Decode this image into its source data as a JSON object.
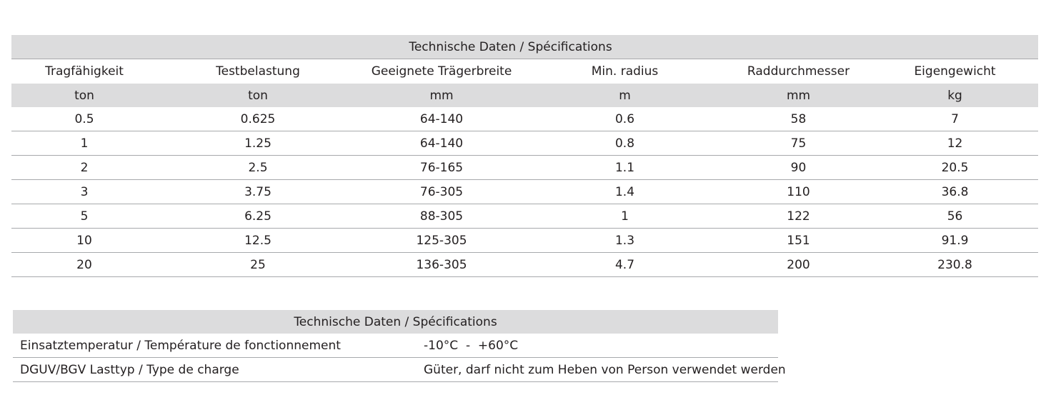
{
  "spec_table": {
    "title": "Technische Daten / Spécifications",
    "headers": [
      "Tragfähigkeit",
      "Testbelastung",
      "Geeignete Trägerbreite",
      "Min. radius",
      "Raddurchmesser",
      "Eigengewicht"
    ],
    "units": [
      "ton",
      "ton",
      "mm",
      "m",
      "mm",
      "kg"
    ],
    "rows": [
      [
        "0.5",
        "0.625",
        "64-140",
        "0.6",
        "58",
        "7"
      ],
      [
        "1",
        "1.25",
        "64-140",
        "0.8",
        "75",
        "12"
      ],
      [
        "2",
        "2.5",
        "76-165",
        "1.1",
        "90",
        "20.5"
      ],
      [
        "3",
        "3.75",
        "76-305",
        "1.4",
        "110",
        "36.8"
      ],
      [
        "5",
        "6.25",
        "88-305",
        "1",
        "122",
        "56"
      ],
      [
        "10",
        "12.5",
        "125-305",
        "1.3",
        "151",
        "91.9"
      ],
      [
        "20",
        "25",
        "136-305",
        "4.7",
        "200",
        "230.8"
      ]
    ]
  },
  "general_table": {
    "title": "Technische Daten / Spécifications",
    "rows": [
      {
        "label": "Einsatztemperatur / Température de fonctionnement",
        "value": "-10°C  -  +60°C"
      },
      {
        "label": "DGUV/BGV Lasttyp / Type de charge",
        "value": "Güter, darf nicht zum Heben von Person verwendet werden"
      }
    ]
  }
}
